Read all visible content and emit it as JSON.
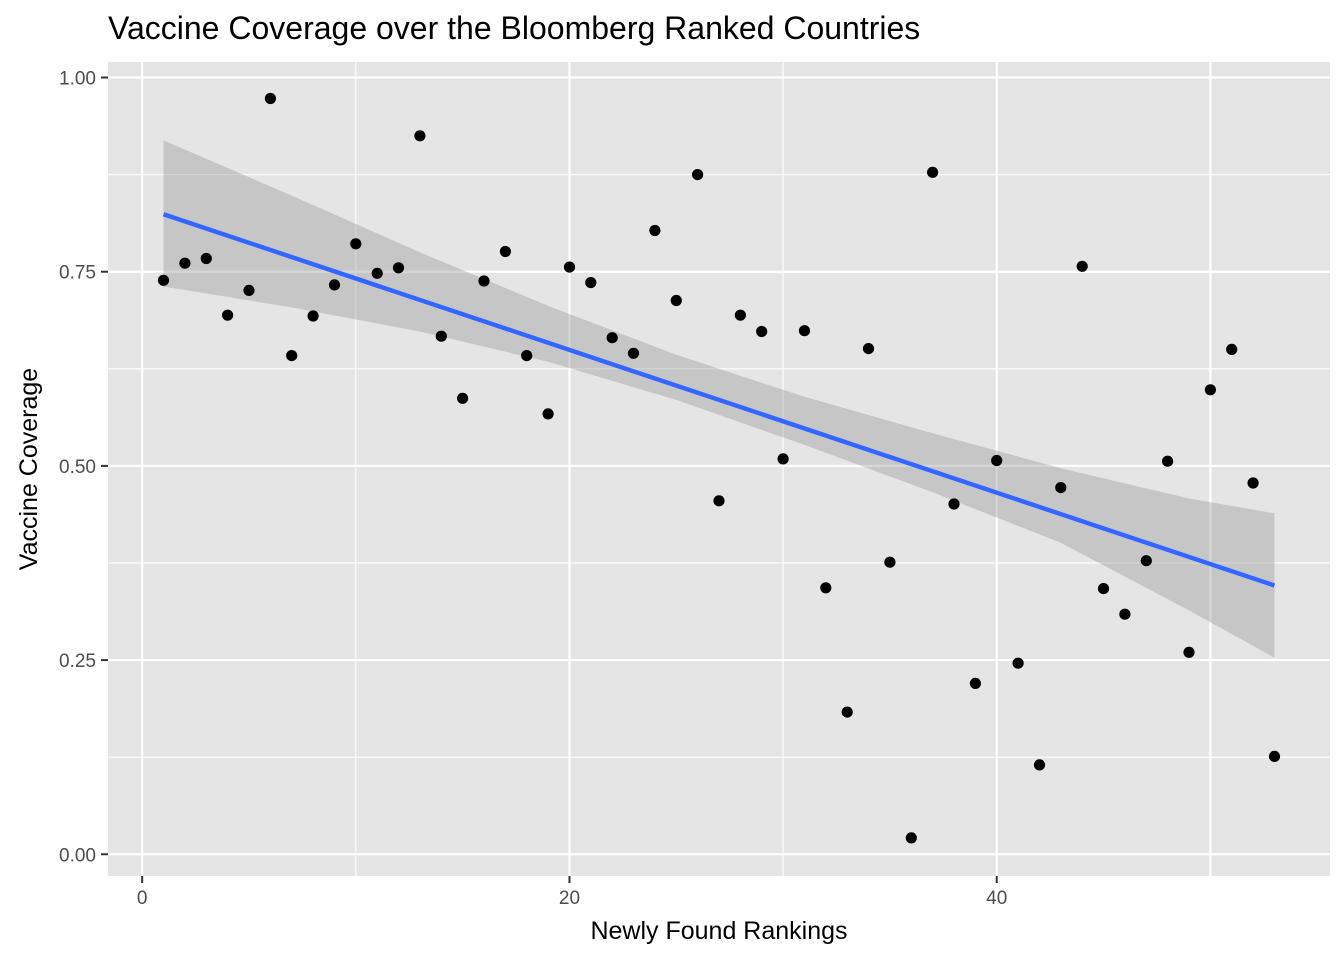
{
  "chart_data": {
    "type": "scatter",
    "title": "Vaccine Coverage over the Bloomberg Ranked Countries",
    "xlabel": "Newly Found Rankings",
    "ylabel": "Vaccine Coverage",
    "xlim": [
      -1.6,
      55.6
    ],
    "ylim": [
      -0.028,
      1.02
    ],
    "x_ticks": [
      0,
      20,
      40
    ],
    "x_tick_labels": [
      "0",
      "20",
      "40"
    ],
    "y_ticks": [
      0,
      0.25,
      0.5,
      0.75,
      1.0
    ],
    "y_tick_labels": [
      "0.00",
      "0.25",
      "0.50",
      "0.75",
      "1.00"
    ],
    "grid": true,
    "legend": "none",
    "colors": {
      "panel": "#e5e5e5",
      "grid": "#ffffff",
      "points": "#000000",
      "trend_line": "#3366ff",
      "confidence_band": "#999999"
    },
    "points": {
      "x": [
        1,
        2,
        3,
        4,
        5,
        6,
        7,
        8,
        9,
        10,
        11,
        12,
        13,
        14,
        15,
        16,
        17,
        18,
        19,
        20,
        21,
        22,
        23,
        24,
        25,
        26,
        27,
        28,
        29,
        30,
        31,
        32,
        33,
        34,
        35,
        36,
        37,
        38,
        39,
        40,
        41,
        42,
        43,
        44,
        45,
        46,
        47,
        48,
        49,
        50,
        51,
        52,
        53
      ],
      "y": [
        0.739,
        0.761,
        0.767,
        0.694,
        0.726,
        0.973,
        0.642,
        0.693,
        0.733,
        0.786,
        0.748,
        0.755,
        0.925,
        0.667,
        0.587,
        0.738,
        0.776,
        0.642,
        0.567,
        0.756,
        0.736,
        0.665,
        0.645,
        0.803,
        0.713,
        0.875,
        0.455,
        0.694,
        0.673,
        0.509,
        0.674,
        0.343,
        0.183,
        0.651,
        0.376,
        0.021,
        0.878,
        0.451,
        0.22,
        0.507,
        0.246,
        0.115,
        0.472,
        0.757,
        0.342,
        0.309,
        0.378,
        0.506,
        0.26,
        0.598,
        0.65,
        0.478,
        0.126
      ]
    },
    "trend": {
      "method": "linear",
      "x": [
        1,
        53
      ],
      "y": [
        0.824,
        0.346
      ]
    },
    "confidence_band": {
      "x": [
        1,
        7,
        13,
        19,
        25,
        31,
        37,
        43,
        49,
        53
      ],
      "lower": [
        0.731,
        0.704,
        0.673,
        0.634,
        0.585,
        0.527,
        0.466,
        0.401,
        0.314,
        0.253
      ],
      "upper": [
        0.919,
        0.848,
        0.775,
        0.706,
        0.643,
        0.589,
        0.542,
        0.497,
        0.458,
        0.439
      ]
    }
  }
}
